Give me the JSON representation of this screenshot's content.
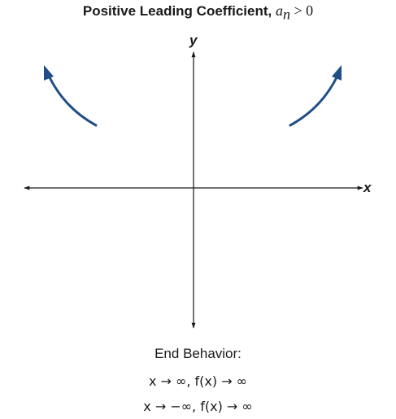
{
  "title": {
    "text": "Positive Leading Coefficient,",
    "coef": "a",
    "subscript": "n",
    "condition": " > 0"
  },
  "axes": {
    "x_label": "x",
    "y_label": "y"
  },
  "curve_color": "#1f4e87",
  "end_behavior": {
    "heading": "End Behavior:",
    "line1": "x → ∞, f(x) → ∞",
    "line2": "x → −∞, f(x) → ∞"
  }
}
